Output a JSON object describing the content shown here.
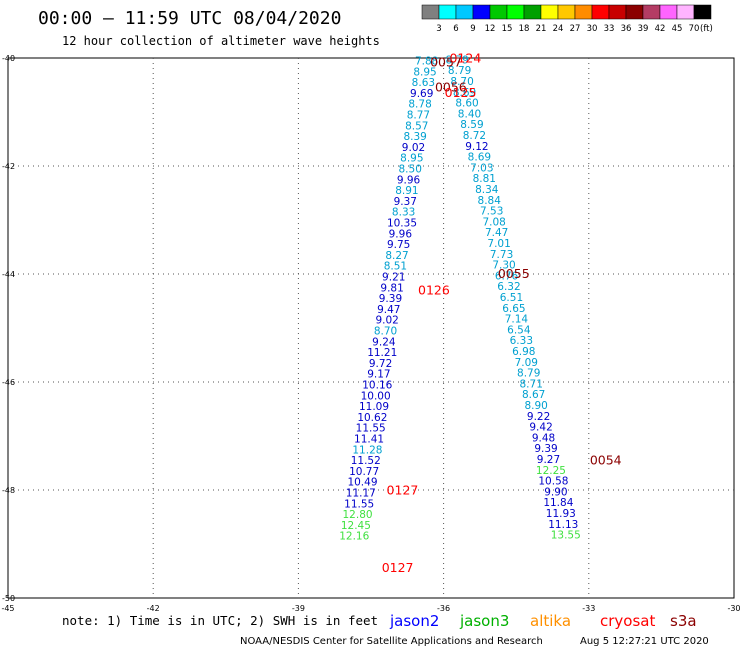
{
  "title": "00:00 – 11:59 UTC 08/04/2020",
  "subtitle": "12 hour collection of altimeter wave heights",
  "colorbar": {
    "colors": [
      "#808080",
      "#00ffff",
      "#00c8ff",
      "#0000ff",
      "#00c800",
      "#00ff00",
      "#00a000",
      "#ffff00",
      "#ffc800",
      "#ff8c00",
      "#ff0000",
      "#c80000",
      "#8b0000",
      "#b43c64",
      "#ff64ff",
      "#ffb4ff",
      "#000000"
    ],
    "labels": [
      "3",
      "6",
      "9",
      "12",
      "15",
      "18",
      "21",
      "24",
      "27",
      "30",
      "33",
      "36",
      "39",
      "42",
      "45",
      "70"
    ],
    "unit": "(ft)"
  },
  "axes": {
    "lon_ticks": [
      "-45",
      "-42",
      "-39",
      "-36",
      "-33",
      "-30"
    ],
    "lat_ticks": [
      "-40",
      "-42",
      "-44",
      "-46",
      "-48",
      "-50"
    ]
  },
  "colors": {
    "cyan": "#00a0d0",
    "blue": "#0000c8",
    "green": "#40e040",
    "red": "#ff0000",
    "darkred": "#8b0000"
  },
  "tracks": [
    {
      "name": "track-a",
      "lon_start": -36.35,
      "lon_step": -0.034,
      "lat_start": -40.12,
      "lat_step": 0.2,
      "values": [
        [
          "7.88",
          "c"
        ],
        [
          "8.95",
          "c"
        ],
        [
          "8.63",
          "c"
        ],
        [
          "9.69",
          "b"
        ],
        [
          "8.78",
          "c"
        ],
        [
          "8.77",
          "c"
        ],
        [
          "8.57",
          "c"
        ],
        [
          "8.39",
          "c"
        ],
        [
          "9.02",
          "b"
        ],
        [
          "8.95",
          "c"
        ],
        [
          "8.50",
          "c"
        ],
        [
          "9.96",
          "b"
        ],
        [
          "8.91",
          "c"
        ],
        [
          "9.37",
          "b"
        ],
        [
          "8.33",
          "c"
        ],
        [
          "10.35",
          "b"
        ],
        [
          "9.96",
          "b"
        ],
        [
          "9.75",
          "b"
        ],
        [
          "8.27",
          "c"
        ],
        [
          "8.51",
          "c"
        ],
        [
          "9.21",
          "b"
        ],
        [
          "9.81",
          "b"
        ],
        [
          "9.39",
          "b"
        ],
        [
          "9.47",
          "b"
        ],
        [
          "9.02",
          "b"
        ],
        [
          "8.70",
          "c"
        ],
        [
          "9.24",
          "b"
        ],
        [
          "11.21",
          "b"
        ],
        [
          "9.72",
          "b"
        ],
        [
          "9.17",
          "b"
        ],
        [
          "10.16",
          "b"
        ],
        [
          "10.00",
          "b"
        ],
        [
          "11.09",
          "b"
        ],
        [
          "10.62",
          "b"
        ],
        [
          "11.55",
          "b"
        ],
        [
          "11.41",
          "b"
        ],
        [
          "11.28",
          "c"
        ],
        [
          "11.52",
          "b"
        ],
        [
          "10.77",
          "b"
        ],
        [
          "10.49",
          "b"
        ],
        [
          "11.17",
          "b"
        ],
        [
          "11.55",
          "b"
        ],
        [
          "12.80",
          "g"
        ],
        [
          "12.45",
          "g"
        ],
        [
          "12.16",
          "g"
        ]
      ]
    },
    {
      "name": "track-b",
      "lon_start": -35.72,
      "lon_step": 0.051,
      "lat_start": -40.1,
      "lat_step": 0.2,
      "values": [
        [
          "8.79",
          "c"
        ],
        [
          "8.79",
          "c"
        ],
        [
          "8.70",
          "c"
        ],
        [
          "8.69",
          "c"
        ],
        [
          "8.60",
          "c"
        ],
        [
          "8.40",
          "c"
        ],
        [
          "8.59",
          "c"
        ],
        [
          "8.72",
          "c"
        ],
        [
          "9.12",
          "b"
        ],
        [
          "8.69",
          "c"
        ],
        [
          "7.03",
          "c"
        ],
        [
          "8.81",
          "c"
        ],
        [
          "8.34",
          "c"
        ],
        [
          "8.84",
          "c"
        ],
        [
          "7.53",
          "c"
        ],
        [
          "7.08",
          "c"
        ],
        [
          "7.47",
          "c"
        ],
        [
          "7.01",
          "c"
        ],
        [
          "7.73",
          "c"
        ],
        [
          "7.30",
          "c"
        ],
        [
          "6.76",
          "c"
        ],
        [
          "6.32",
          "c"
        ],
        [
          "6.51",
          "c"
        ],
        [
          "6.65",
          "c"
        ],
        [
          "7.14",
          "c"
        ],
        [
          "6.54",
          "c"
        ],
        [
          "6.33",
          "c"
        ],
        [
          "6.98",
          "c"
        ],
        [
          "7.09",
          "c"
        ],
        [
          "8.79",
          "c"
        ],
        [
          "8.71",
          "c"
        ],
        [
          "8.67",
          "c"
        ],
        [
          "8.90",
          "c"
        ],
        [
          "9.22",
          "b"
        ],
        [
          "9.42",
          "b"
        ],
        [
          "9.48",
          "b"
        ],
        [
          "9.39",
          "b"
        ],
        [
          "9.27",
          "b"
        ],
        [
          "12.25",
          "g"
        ],
        [
          "10.58",
          "b"
        ],
        [
          "9.90",
          "b"
        ],
        [
          "11.84",
          "b"
        ],
        [
          "11.93",
          "b"
        ],
        [
          "11.13",
          "b"
        ],
        [
          "13.55",
          "g"
        ]
      ]
    }
  ],
  "time_labels": [
    {
      "text": "0124",
      "lat": -40.08,
      "lon": -35.55,
      "color": "red"
    },
    {
      "text": "0057",
      "lat": -40.16,
      "lon": -35.95,
      "color": "darkred"
    },
    {
      "text": "0056",
      "lat": -40.62,
      "lon": -35.85,
      "color": "darkred"
    },
    {
      "text": "0125",
      "lat": -40.72,
      "lon": -35.65,
      "color": "red"
    },
    {
      "text": "0055",
      "lat": -44.07,
      "lon": -34.55,
      "color": "darkred"
    },
    {
      "text": "0126",
      "lat": -44.38,
      "lon": -36.2,
      "color": "red"
    },
    {
      "text": "0054",
      "lat": -47.53,
      "lon": -32.65,
      "color": "darkred"
    },
    {
      "text": "0127",
      "lat": -48.08,
      "lon": -36.85,
      "color": "red"
    },
    {
      "text": "0127",
      "lat": -49.52,
      "lon": -36.95,
      "color": "red"
    }
  ],
  "note": "note: 1) Time is in UTC; 2) SWH is in feet",
  "legend": [
    {
      "label": "jason2",
      "color": "#0000ff"
    },
    {
      "label": "jason3",
      "color": "#00b000"
    },
    {
      "label": "altika",
      "color": "#ff9000"
    },
    {
      "label": "cryosat",
      "color": "#ff0000"
    },
    {
      "label": "s3a",
      "color": "#8b0000"
    }
  ],
  "credit_left": "NOAA/NESDIS Center for Satellite Applications and Research",
  "credit_right": "Aug  5 12:27:21 UTC 2020"
}
